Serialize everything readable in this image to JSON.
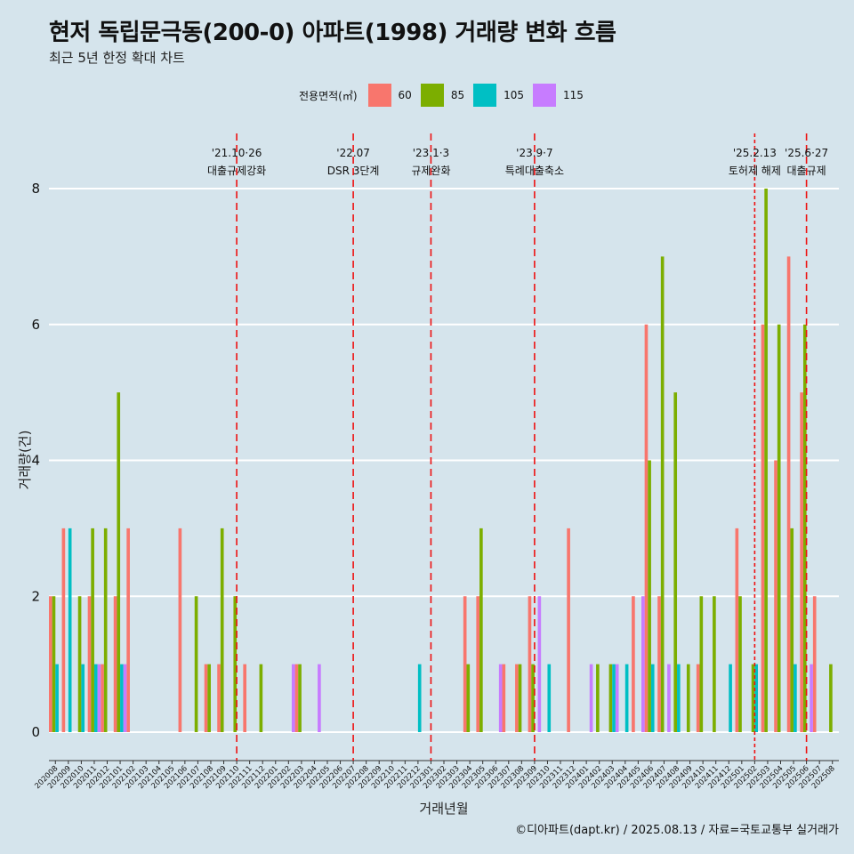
{
  "title": "현저 독립문극동(200-0) 아파트(1998) 거래량 변화 흐름",
  "subtitle": "최근 5년 한정 확대 차트",
  "caption": "©디아파트(dapt.kr) / 2025.08.13 / 자료=국토교통부 실거래가",
  "legend": {
    "title": "전용면적(㎡)",
    "items": [
      {
        "label": "60",
        "color": "#f8766d"
      },
      {
        "label": "85",
        "color": "#7cae00"
      },
      {
        "label": "105",
        "color": "#00bfc4"
      },
      {
        "label": "115",
        "color": "#c77cff"
      }
    ]
  },
  "chart_data": {
    "type": "bar",
    "xlabel": "거래년월",
    "ylabel": "거래량(건)",
    "ylim": [
      0,
      8
    ],
    "yticks": [
      0,
      2,
      4,
      6,
      8
    ],
    "categories": [
      "202008",
      "202009",
      "202010",
      "202011",
      "202012",
      "202101",
      "202102",
      "202103",
      "202104",
      "202105",
      "202106",
      "202107",
      "202108",
      "202109",
      "202110",
      "202111",
      "202112",
      "202201",
      "202202",
      "202203",
      "202204",
      "202205",
      "202206",
      "202207",
      "202208",
      "202209",
      "202210",
      "202211",
      "202212",
      "202301",
      "202302",
      "202303",
      "202304",
      "202305",
      "202306",
      "202307",
      "202308",
      "202309",
      "202310",
      "202311",
      "202312",
      "202401",
      "202402",
      "202403",
      "202404",
      "202405",
      "202406",
      "202407",
      "202408",
      "202409",
      "202410",
      "202411",
      "202412",
      "202501",
      "202502",
      "202503",
      "202504",
      "202505",
      "202506",
      "202507",
      "202508"
    ],
    "series": [
      {
        "name": "60",
        "color": "#f8766d",
        "values": [
          2,
          3,
          0,
          2,
          1,
          2,
          3,
          0,
          0,
          0,
          3,
          0,
          1,
          1,
          0,
          1,
          0,
          0,
          0,
          1,
          0,
          0,
          0,
          0,
          0,
          0,
          0,
          0,
          0,
          0,
          0,
          0,
          2,
          2,
          0,
          1,
          1,
          2,
          0,
          0,
          3,
          0,
          0,
          0,
          0,
          2,
          6,
          2,
          0,
          0,
          1,
          0,
          0,
          3,
          0,
          6,
          4,
          7,
          5,
          2,
          0
        ]
      },
      {
        "name": "85",
        "color": "#7cae00",
        "values": [
          2,
          0,
          2,
          3,
          3,
          5,
          0,
          0,
          0,
          0,
          0,
          2,
          1,
          3,
          2,
          0,
          1,
          0,
          0,
          1,
          0,
          0,
          0,
          0,
          0,
          0,
          0,
          0,
          0,
          0,
          0,
          0,
          1,
          3,
          0,
          0,
          1,
          1,
          0,
          0,
          0,
          0,
          1,
          1,
          0,
          0,
          4,
          7,
          5,
          1,
          2,
          2,
          0,
          2,
          1,
          8,
          6,
          3,
          6,
          0,
          1
        ]
      },
      {
        "name": "105",
        "color": "#00bfc4",
        "values": [
          1,
          3,
          1,
          1,
          0,
          1,
          0,
          0,
          0,
          0,
          0,
          0,
          0,
          0,
          0,
          0,
          0,
          0,
          0,
          0,
          0,
          0,
          0,
          0,
          0,
          0,
          0,
          0,
          1,
          0,
          0,
          0,
          0,
          0,
          0,
          0,
          0,
          0,
          1,
          0,
          0,
          0,
          0,
          1,
          1,
          0,
          1,
          0,
          1,
          0,
          0,
          0,
          1,
          0,
          1,
          0,
          0,
          1,
          0,
          0,
          0
        ]
      },
      {
        "name": "115",
        "color": "#c77cff",
        "values": [
          0,
          0,
          0,
          1,
          0,
          1,
          0,
          0,
          0,
          0,
          0,
          0,
          0,
          0,
          0,
          0,
          0,
          0,
          1,
          0,
          1,
          0,
          0,
          0,
          0,
          0,
          0,
          0,
          0,
          0,
          0,
          0,
          0,
          0,
          1,
          0,
          0,
          2,
          0,
          0,
          0,
          1,
          0,
          1,
          0,
          2,
          0,
          1,
          0,
          0,
          0,
          0,
          0,
          0,
          0,
          0,
          0,
          0,
          1,
          0,
          0
        ]
      }
    ],
    "events": [
      {
        "date": "'21.10·26",
        "label": "대출규제강화",
        "at": "202110",
        "offset": 0.0,
        "dash": "long"
      },
      {
        "date": "'22.07",
        "label": "DSR 3단계",
        "at": "202207",
        "offset": 0.0,
        "dash": "long"
      },
      {
        "date": "'23.1·3",
        "label": "규제완화",
        "at": "202301",
        "offset": 0.0,
        "dash": "long"
      },
      {
        "date": "'23.9·7",
        "label": "특례대출축소",
        "at": "202309",
        "offset": 0.0,
        "dash": "long"
      },
      {
        "date": "'25.2.13",
        "label": "토허제 해제",
        "at": "202502",
        "offset": 0.0,
        "dash": "short"
      },
      {
        "date": "'25.6·27",
        "label": "대출규제",
        "at": "202506",
        "offset": 0.0,
        "dash": "long"
      }
    ],
    "grid": true
  }
}
